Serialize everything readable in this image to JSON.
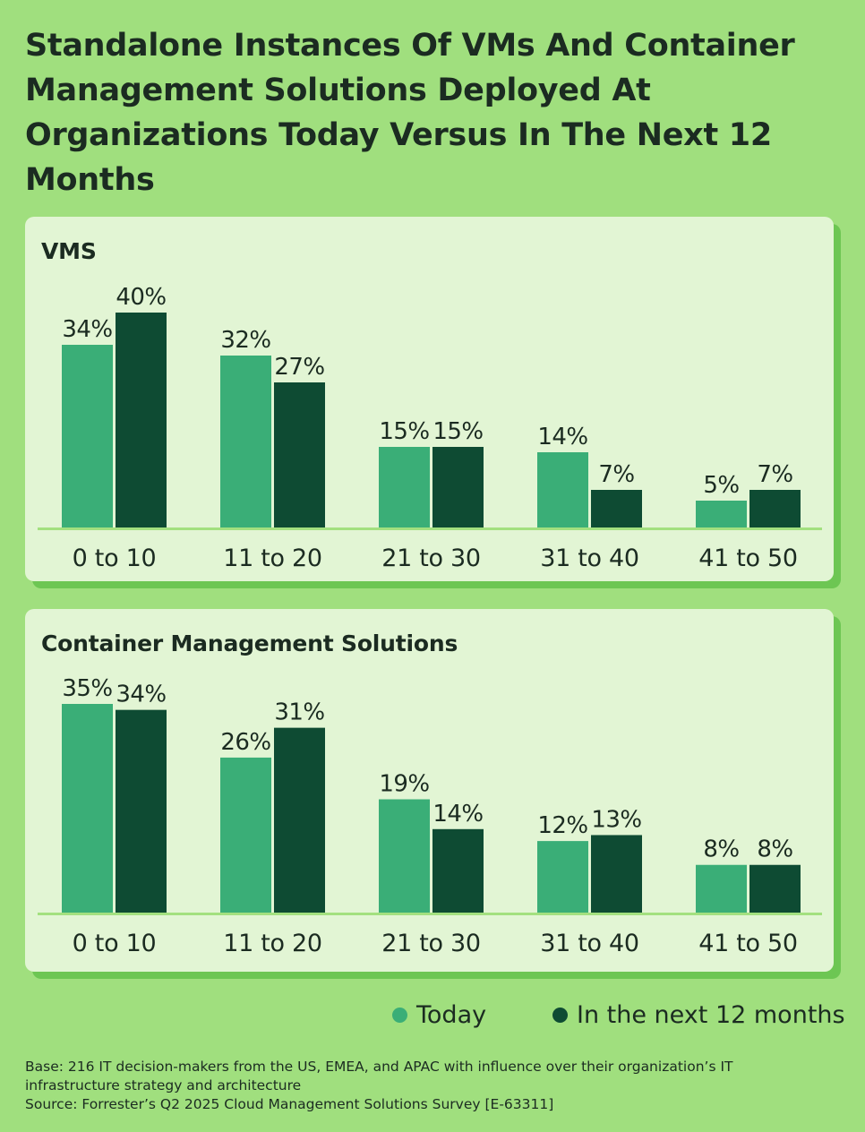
{
  "title": "Standalone Instances Of VMs And Container Management Solutions Deployed At Organizations Today Versus In The Next 12 Months",
  "colors": {
    "background": "#a0df7e",
    "panel": "#e2f5d4",
    "today": "#3aae77",
    "next12": "#0e4b33",
    "axis": "#a3e07f"
  },
  "legend": {
    "today": "Today",
    "next12": "In the next 12 months"
  },
  "chart_data": [
    {
      "type": "bar",
      "title": "VMS",
      "categories": [
        "0 to 10",
        "11 to 20",
        "21 to 30",
        "31 to 40",
        "41 to 50"
      ],
      "series": [
        {
          "name": "Today",
          "values": [
            34,
            32,
            15,
            14,
            5
          ]
        },
        {
          "name": "In the next 12 months",
          "values": [
            40,
            27,
            15,
            7,
            7
          ]
        }
      ],
      "value_suffix": "%",
      "ylim": [
        0,
        40
      ],
      "grid": false
    },
    {
      "type": "bar",
      "title": "Container Management Solutions",
      "categories": [
        "0 to 10",
        "11 to 20",
        "21 to 30",
        "31 to 40",
        "41 to 50"
      ],
      "series": [
        {
          "name": "Today",
          "values": [
            35,
            26,
            19,
            12,
            8
          ]
        },
        {
          "name": "In the next 12 months",
          "values": [
            34,
            31,
            14,
            13,
            8
          ]
        }
      ],
      "value_suffix": "%",
      "ylim": [
        0,
        35
      ],
      "grid": false
    }
  ],
  "footnote": {
    "base": "Base: 216 IT decision-makers from the US, EMEA, and APAC with influence over their organization’s IT infrastructure strategy and architecture",
    "source": "Source: Forrester’s Q2 2025 Cloud Management Solutions Survey [E-63311]"
  }
}
